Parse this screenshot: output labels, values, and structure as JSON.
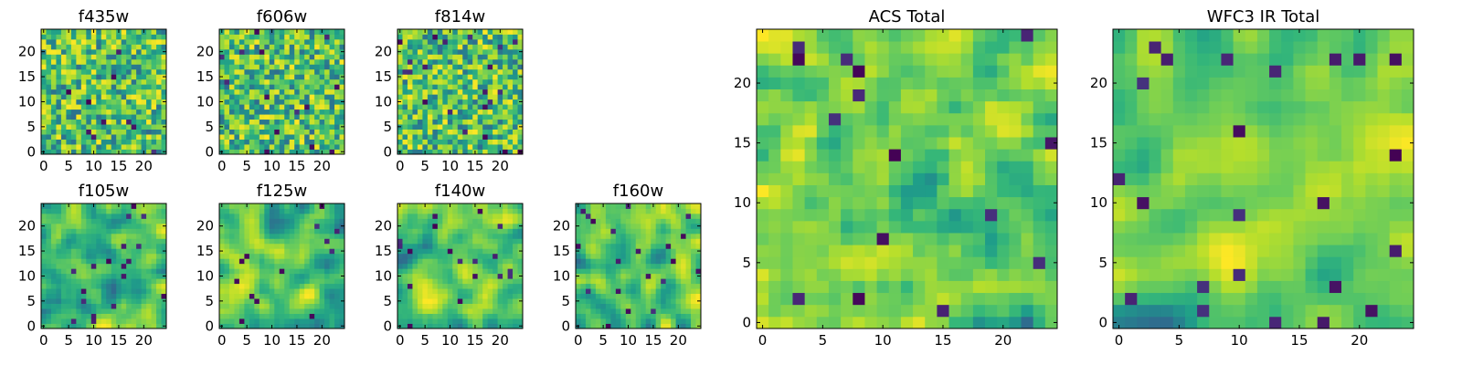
{
  "chart_data": [
    {
      "type": "heatmap",
      "title": "f435w",
      "seed": 11,
      "shape": [
        25,
        25
      ],
      "colormap": "viridis",
      "xticks": [
        0,
        5,
        10,
        15,
        20
      ],
      "yticks": [
        0,
        5,
        10,
        15,
        20
      ],
      "xlim": [
        -0.5,
        24.5
      ],
      "ylim": [
        -0.5,
        24.5
      ],
      "value_range": [
        0,
        1
      ],
      "texture": "noise"
    },
    {
      "type": "heatmap",
      "title": "f606w",
      "seed": 23,
      "shape": [
        25,
        25
      ],
      "colormap": "viridis",
      "xticks": [
        0,
        5,
        10,
        15,
        20
      ],
      "yticks": [
        0,
        5,
        10,
        15,
        20
      ],
      "xlim": [
        -0.5,
        24.5
      ],
      "ylim": [
        -0.5,
        24.5
      ],
      "value_range": [
        0,
        1
      ],
      "texture": "noise"
    },
    {
      "type": "heatmap",
      "title": "f814w",
      "seed": 37,
      "shape": [
        25,
        25
      ],
      "colormap": "viridis",
      "xticks": [
        0,
        5,
        10,
        15,
        20
      ],
      "yticks": [
        0,
        5,
        10,
        15,
        20
      ],
      "xlim": [
        -0.5,
        24.5
      ],
      "ylim": [
        -0.5,
        24.5
      ],
      "value_range": [
        0,
        1
      ],
      "texture": "noise"
    },
    {
      "type": "heatmap",
      "title": "f105w",
      "seed": 41,
      "shape": [
        25,
        25
      ],
      "colormap": "viridis",
      "xticks": [
        0,
        5,
        10,
        15,
        20
      ],
      "yticks": [
        0,
        5,
        10,
        15,
        20
      ],
      "xlim": [
        -0.5,
        24.5
      ],
      "ylim": [
        -0.5,
        24.5
      ],
      "value_range": [
        0,
        1
      ],
      "texture": "smooth"
    },
    {
      "type": "heatmap",
      "title": "f125w",
      "seed": 53,
      "shape": [
        25,
        25
      ],
      "colormap": "viridis",
      "xticks": [
        0,
        5,
        10,
        15,
        20
      ],
      "yticks": [
        0,
        5,
        10,
        15,
        20
      ],
      "xlim": [
        -0.5,
        24.5
      ],
      "ylim": [
        -0.5,
        24.5
      ],
      "value_range": [
        0,
        1
      ],
      "texture": "smooth"
    },
    {
      "type": "heatmap",
      "title": "f140w",
      "seed": 67,
      "shape": [
        25,
        25
      ],
      "colormap": "viridis",
      "xticks": [
        0,
        5,
        10,
        15,
        20
      ],
      "yticks": [
        0,
        5,
        10,
        15,
        20
      ],
      "xlim": [
        -0.5,
        24.5
      ],
      "ylim": [
        -0.5,
        24.5
      ],
      "value_range": [
        0,
        1
      ],
      "texture": "smooth"
    },
    {
      "type": "heatmap",
      "title": "f160w",
      "seed": 79,
      "shape": [
        25,
        25
      ],
      "colormap": "viridis",
      "xticks": [
        0,
        5,
        10,
        15,
        20
      ],
      "yticks": [
        0,
        5,
        10,
        15,
        20
      ],
      "xlim": [
        -0.5,
        24.5
      ],
      "ylim": [
        -0.5,
        24.5
      ],
      "value_range": [
        0,
        1
      ],
      "texture": "smooth"
    },
    {
      "type": "heatmap",
      "title": "ACS Total",
      "seed": 83,
      "shape": [
        25,
        25
      ],
      "colormap": "viridis",
      "xticks": [
        0,
        5,
        10,
        15,
        20
      ],
      "yticks": [
        0,
        5,
        10,
        15,
        20
      ],
      "xlim": [
        -0.5,
        24.5
      ],
      "ylim": [
        -0.5,
        24.5
      ],
      "value_range": [
        0,
        1
      ],
      "texture": "mixed"
    },
    {
      "type": "heatmap",
      "title": "WFC3 IR Total",
      "seed": 97,
      "shape": [
        25,
        25
      ],
      "colormap": "viridis",
      "xticks": [
        0,
        5,
        10,
        15,
        20
      ],
      "yticks": [
        0,
        5,
        10,
        15,
        20
      ],
      "xlim": [
        -0.5,
        24.5
      ],
      "ylim": [
        -0.5,
        24.5
      ],
      "value_range": [
        0,
        1
      ],
      "texture": "smooth"
    }
  ]
}
